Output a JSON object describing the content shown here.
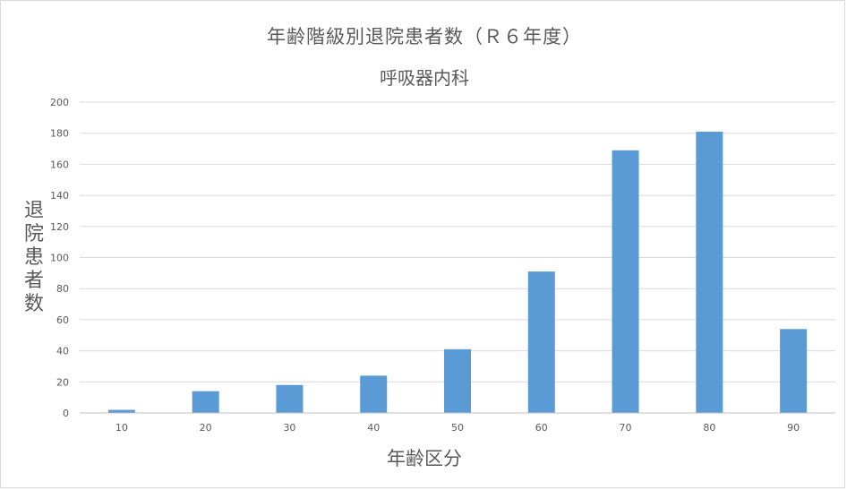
{
  "chart_data": {
    "type": "bar",
    "title": "年齢階級別退院患者数（Ｒ６年度）",
    "subtitle": "呼吸器内科",
    "xlabel": "年齢区分",
    "ylabel": "退院患者数",
    "categories": [
      "10",
      "20",
      "30",
      "40",
      "50",
      "60",
      "70",
      "80",
      "90"
    ],
    "values": [
      2,
      14,
      18,
      24,
      41,
      91,
      169,
      181,
      54
    ],
    "ylim": [
      0,
      200
    ],
    "yticks": [
      0,
      20,
      40,
      60,
      80,
      100,
      120,
      140,
      160,
      180,
      200
    ],
    "grid": true,
    "legend": "none",
    "bar_color": "#5b9bd5"
  }
}
